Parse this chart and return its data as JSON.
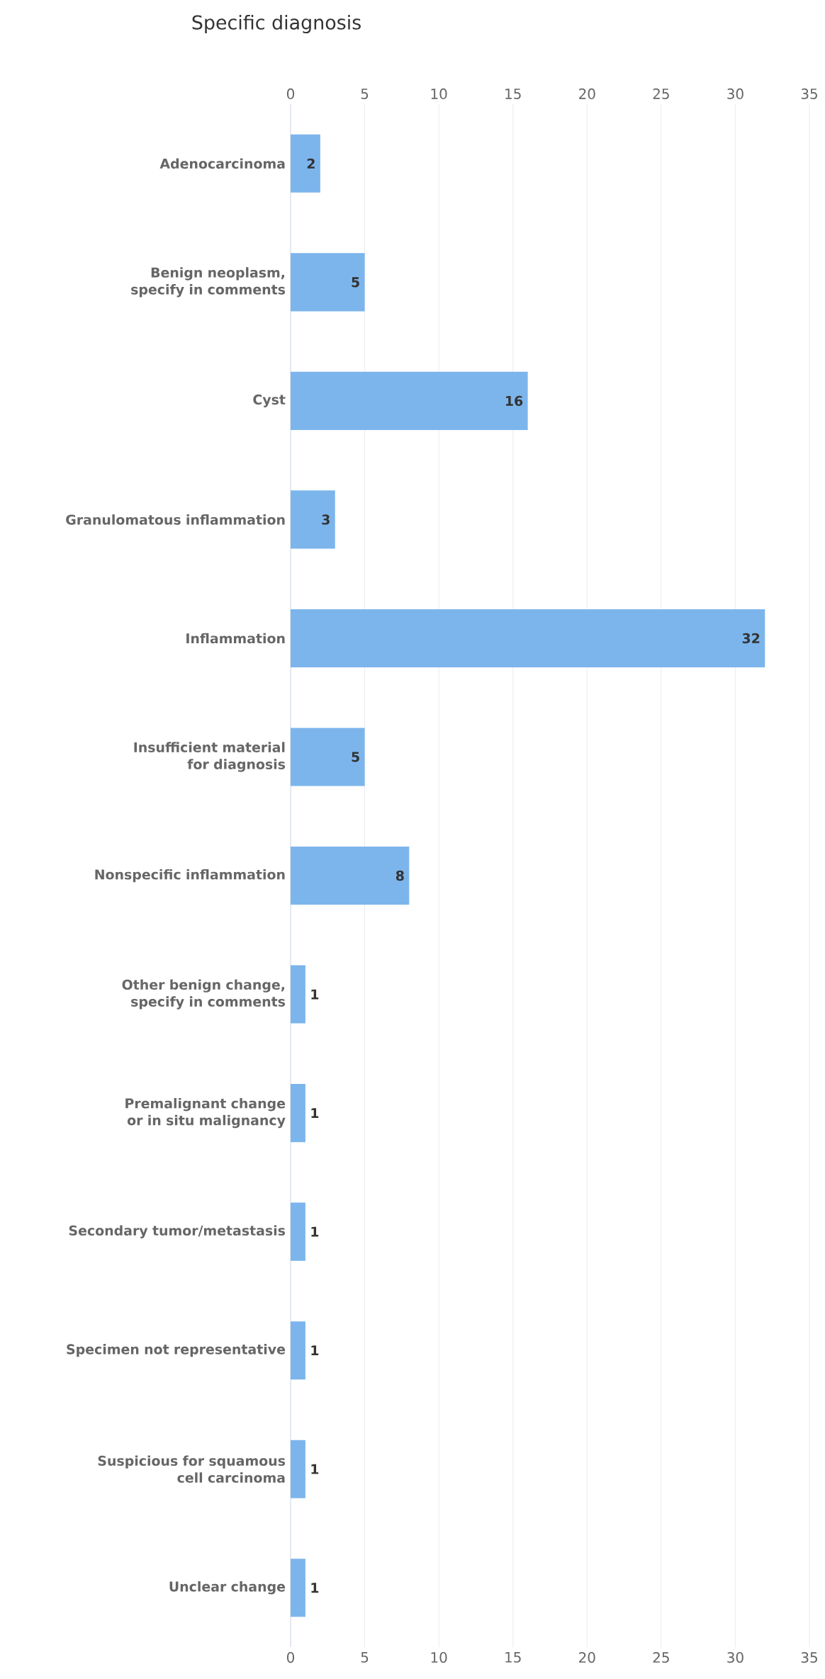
{
  "chart_data": {
    "type": "bar",
    "orientation": "horizontal",
    "title": "Specific diagnosis",
    "categories": [
      "Adenocarcinoma",
      "Benign neoplasm, specify in comments",
      "Cyst",
      "Granulomatous inflammation",
      "Inflammation",
      "Insufficient material for diagnosis",
      "Nonspecific inflammation",
      "Other benign change, specify in comments",
      "Premalignant change or in situ malignancy",
      "Secondary tumor/metastasis",
      "Specimen not representative",
      "Suspicious for squamous cell carcinoma",
      "Unclear change"
    ],
    "values": [
      2,
      5,
      16,
      3,
      32,
      5,
      8,
      1,
      1,
      1,
      1,
      1,
      1
    ],
    "color": "#7cb5ec",
    "xlim": [
      0,
      35
    ],
    "xticks": [
      0,
      5,
      10,
      15,
      20,
      25,
      30,
      35
    ],
    "x2lim": [
      0,
      35
    ],
    "x2ticks": [
      0,
      5,
      10,
      15,
      20,
      25,
      30,
      35
    ],
    "grid": "x",
    "data_labels": true
  }
}
